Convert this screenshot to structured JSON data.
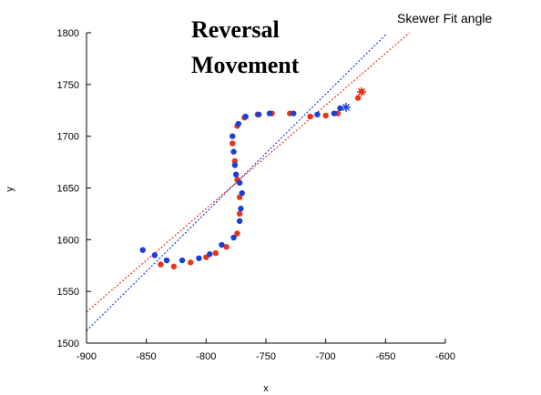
{
  "corner_label": "Skewer Fit angle",
  "chart_data": {
    "type": "scatter",
    "title": [
      "Reversal",
      "Movement"
    ],
    "xlabel": "x",
    "ylabel": "y",
    "xlim": [
      -900,
      -600
    ],
    "ylim": [
      1500,
      1800
    ],
    "xticks": [
      -900,
      -850,
      -800,
      -750,
      -700,
      -650,
      -600
    ],
    "yticks": [
      1500,
      1550,
      1600,
      1650,
      1700,
      1750,
      1800
    ],
    "grid": false,
    "legend": "none",
    "series": [
      {
        "color": "#e8341c",
        "marker": "circle",
        "points": [
          [
            -670,
            1743
          ],
          [
            -673,
            1737
          ],
          [
            -690,
            1722
          ],
          [
            -700,
            1720
          ],
          [
            -713,
            1719
          ],
          [
            -730,
            1722
          ],
          [
            -745,
            1722
          ],
          [
            -757,
            1721
          ],
          [
            -768,
            1718
          ],
          [
            -774,
            1710
          ],
          [
            -778,
            1693
          ],
          [
            -776,
            1676
          ],
          [
            -774,
            1658
          ],
          [
            -772,
            1641
          ],
          [
            -772,
            1625
          ],
          [
            -774,
            1606
          ],
          [
            -783,
            1593
          ],
          [
            -792,
            1587
          ],
          [
            -800,
            1583
          ],
          [
            -813,
            1578
          ],
          [
            -827,
            1574
          ],
          [
            -838,
            1576
          ]
        ]
      },
      {
        "color": "#1a3fd6",
        "marker": "circle",
        "points": [
          [
            -853,
            1590
          ],
          [
            -843,
            1585
          ],
          [
            -833,
            1580
          ],
          [
            -820,
            1580
          ],
          [
            -806,
            1582
          ],
          [
            -797,
            1586
          ],
          [
            -787,
            1595
          ],
          [
            -777,
            1602
          ],
          [
            -772,
            1618
          ],
          [
            -771,
            1630
          ],
          [
            -770,
            1645
          ],
          [
            -772,
            1655
          ],
          [
            -775,
            1663
          ],
          [
            -776,
            1672
          ],
          [
            -777,
            1685
          ],
          [
            -778,
            1700
          ],
          [
            -773,
            1712
          ],
          [
            -767,
            1719
          ],
          [
            -756,
            1721
          ],
          [
            -747,
            1722
          ],
          [
            -727,
            1722
          ],
          [
            -707,
            1721
          ],
          [
            -693,
            1722
          ],
          [
            -688,
            1727
          ]
        ]
      }
    ],
    "markers": [
      {
        "color": "#e8341c",
        "symbol": "star",
        "x": -670,
        "y": 1743
      },
      {
        "color": "#1a3fd6",
        "symbol": "star",
        "x": -683,
        "y": 1728
      }
    ],
    "fit_lines": [
      {
        "color": "#e8341c",
        "style": "dotted",
        "x": [
          -900,
          -630
        ],
        "y": [
          1530,
          1800
        ]
      },
      {
        "color": "#1a3fd6",
        "style": "dotted",
        "x": [
          -900,
          -650
        ],
        "y": [
          1512,
          1798
        ]
      }
    ]
  }
}
